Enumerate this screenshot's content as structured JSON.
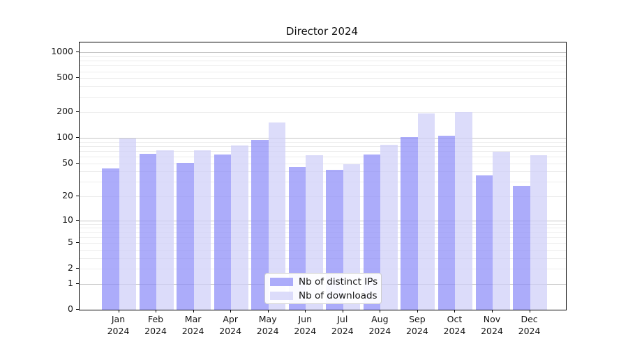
{
  "figure": {
    "title": "Director 2024"
  },
  "legend": {
    "items": [
      {
        "label": "Nb of distinct IPs",
        "series_key": "ips"
      },
      {
        "label": "Nb of downloads",
        "series_key": "downloads"
      }
    ],
    "position": "lower center"
  },
  "colors": {
    "ips_bar": "rgba(140,140,248,0.72)",
    "downloads_bar": "rgba(206,206,248,0.72)",
    "grid_major": "#c4c4c4",
    "grid_minor": "#ececec",
    "axis": "#000000"
  },
  "chart_data": {
    "type": "bar",
    "title": "Director 2024",
    "categories": [
      "Jan 2024",
      "Feb 2024",
      "Mar 2024",
      "Apr 2024",
      "May 2024",
      "Jun 2024",
      "Jul 2024",
      "Aug 2024",
      "Sep 2024",
      "Oct 2024",
      "Nov 2024",
      "Dec 2024"
    ],
    "categories_line1": [
      "Jan",
      "Feb",
      "Mar",
      "Apr",
      "May",
      "Jun",
      "Jul",
      "Aug",
      "Sep",
      "Oct",
      "Nov",
      "Dec"
    ],
    "categories_line2": [
      "2024",
      "2024",
      "2024",
      "2024",
      "2024",
      "2024",
      "2024",
      "2024",
      "2024",
      "2024",
      "2024",
      "2024"
    ],
    "series": [
      {
        "name": "Nb of distinct IPs",
        "values": [
          43,
          65,
          51,
          64,
          94,
          45,
          42,
          64,
          102,
          106,
          36,
          27
        ]
      },
      {
        "name": "Nb of downloads",
        "values": [
          98,
          71,
          71,
          81,
          152,
          62,
          49,
          83,
          192,
          200,
          68,
          62
        ]
      }
    ],
    "xlabel": "",
    "ylabel": "",
    "yscale": "symlog",
    "ytick_values": [
      0,
      1,
      2,
      5,
      10,
      20,
      50,
      100,
      200,
      500,
      1000
    ],
    "ytick_labels": [
      "0",
      "1",
      "2",
      "5",
      "10",
      "20",
      "50",
      "100",
      "200",
      "500",
      "1000"
    ],
    "minor_ytick_values": [
      2,
      3,
      4,
      5,
      6,
      7,
      8,
      9,
      20,
      30,
      40,
      50,
      60,
      70,
      80,
      90,
      200,
      300,
      400,
      500,
      600,
      700,
      800,
      900
    ],
    "major_grid_values": [
      1,
      10,
      100,
      1000
    ],
    "ylim": [
      0,
      1305
    ],
    "grid": "on",
    "legend_position": "lower center"
  }
}
